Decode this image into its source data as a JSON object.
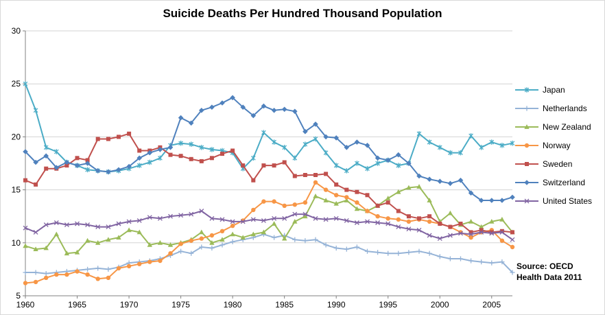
{
  "source_note": {
    "line1": "Source: OECD",
    "line2": "Health Data 2011"
  },
  "chart_data": {
    "type": "line",
    "title": "Suicide Deaths Per Hundred Thousand Population",
    "xlabel": "",
    "ylabel": "",
    "ylim": [
      5,
      30
    ],
    "y_ticks": [
      5,
      10,
      15,
      20,
      25,
      30
    ],
    "x_ticks": [
      1960,
      1965,
      1970,
      1975,
      1980,
      1985,
      1990,
      1995,
      2000,
      2005
    ],
    "grid": true,
    "legend_position": "right",
    "axis_color": "#808080",
    "gridline_color": "#D3D3D3",
    "x": [
      1960,
      1961,
      1962,
      1963,
      1964,
      1965,
      1966,
      1967,
      1968,
      1969,
      1970,
      1971,
      1972,
      1973,
      1974,
      1975,
      1976,
      1977,
      1978,
      1979,
      1980,
      1981,
      1982,
      1983,
      1984,
      1985,
      1986,
      1987,
      1988,
      1989,
      1990,
      1991,
      1992,
      1993,
      1994,
      1995,
      1996,
      1997,
      1998,
      1999,
      2000,
      2001,
      2002,
      2003,
      2004,
      2005,
      2006,
      2007
    ],
    "series": [
      {
        "name": "Japan",
        "color": "#4BACC6",
        "marker": "asterisk",
        "values": [
          25.0,
          22.5,
          19.0,
          18.6,
          17.6,
          17.3,
          16.9,
          16.8,
          16.7,
          16.8,
          17.0,
          17.3,
          17.6,
          18.0,
          19.2,
          19.4,
          19.3,
          19.0,
          18.8,
          18.7,
          18.5,
          17.0,
          18.0,
          20.4,
          19.5,
          19.0,
          18.0,
          19.3,
          19.8,
          18.5,
          17.3,
          16.8,
          17.5,
          17.0,
          17.5,
          17.8,
          17.3,
          17.5,
          20.3,
          19.5,
          19.0,
          18.5,
          18.5,
          20.1,
          19.0,
          19.5,
          19.2,
          19.4
        ]
      },
      {
        "name": "Netherlands",
        "color": "#95B3D7",
        "marker": "plus",
        "values": [
          7.2,
          7.2,
          7.1,
          7.2,
          7.3,
          7.4,
          7.5,
          7.6,
          7.5,
          7.7,
          8.1,
          8.2,
          8.3,
          8.5,
          8.8,
          9.2,
          9.0,
          9.6,
          9.5,
          9.8,
          10.1,
          10.3,
          10.5,
          10.8,
          10.5,
          10.7,
          10.3,
          10.2,
          10.3,
          9.8,
          9.5,
          9.4,
          9.6,
          9.2,
          9.1,
          9.0,
          9.0,
          9.1,
          9.2,
          9.0,
          8.7,
          8.5,
          8.5,
          8.3,
          8.2,
          8.1,
          8.2,
          7.2
        ]
      },
      {
        "name": "New Zealand",
        "color": "#9BBB59",
        "marker": "triangle",
        "values": [
          9.7,
          9.4,
          9.5,
          10.8,
          9.0,
          9.1,
          10.2,
          10.0,
          10.3,
          10.5,
          11.2,
          11.0,
          9.8,
          10.0,
          9.8,
          10.0,
          10.3,
          11.0,
          10.0,
          10.3,
          10.8,
          10.5,
          10.8,
          11.0,
          11.8,
          10.4,
          12.0,
          12.5,
          14.4,
          14.0,
          13.7,
          14.0,
          13.2,
          13.0,
          13.5,
          14.2,
          14.8,
          15.2,
          15.3,
          14.0,
          12.0,
          12.8,
          11.7,
          12.0,
          11.5,
          12.0,
          12.2,
          11.0
        ]
      },
      {
        "name": "Norway",
        "color": "#F79646",
        "marker": "circle",
        "values": [
          6.2,
          6.3,
          6.7,
          7.0,
          7.0,
          7.3,
          7.0,
          6.6,
          6.7,
          7.6,
          7.8,
          8.0,
          8.2,
          8.3,
          9.0,
          9.9,
          10.2,
          10.4,
          10.7,
          11.1,
          11.6,
          12.1,
          13.1,
          13.9,
          13.9,
          13.5,
          13.6,
          13.8,
          15.7,
          15.0,
          14.5,
          14.3,
          13.8,
          13.0,
          12.5,
          12.3,
          12.2,
          12.0,
          12.2,
          12.0,
          11.8,
          11.5,
          11.0,
          10.5,
          11.0,
          11.2,
          10.2,
          9.6
        ]
      },
      {
        "name": "Sweden",
        "color": "#C0504D",
        "marker": "square",
        "values": [
          15.9,
          15.5,
          17.0,
          17.0,
          17.3,
          18.0,
          17.8,
          19.8,
          19.8,
          20.0,
          20.3,
          18.7,
          18.7,
          19.0,
          18.3,
          18.2,
          17.9,
          17.7,
          18.0,
          18.4,
          18.7,
          17.3,
          15.9,
          17.3,
          17.3,
          17.6,
          16.3,
          16.4,
          16.4,
          16.5,
          15.5,
          15.0,
          14.8,
          14.5,
          13.5,
          13.8,
          13.0,
          12.5,
          12.3,
          12.5,
          11.8,
          11.5,
          11.8,
          11.0,
          11.2,
          11.0,
          11.1,
          11.0
        ]
      },
      {
        "name": "Switzerland",
        "color": "#4F81BD",
        "marker": "diamond",
        "values": [
          18.6,
          17.6,
          18.2,
          17.1,
          17.6,
          17.3,
          17.5,
          16.8,
          16.7,
          16.9,
          17.2,
          18.0,
          18.5,
          18.8,
          19.0,
          21.8,
          21.3,
          22.5,
          22.8,
          23.2,
          23.7,
          22.8,
          22.0,
          22.9,
          22.5,
          22.6,
          22.4,
          20.5,
          21.2,
          20.0,
          19.9,
          19.0,
          19.5,
          19.2,
          18.0,
          17.8,
          18.3,
          17.5,
          16.3,
          16.0,
          15.8,
          15.6,
          15.9,
          14.7,
          14.0,
          14.0,
          14.0,
          14.3
        ]
      },
      {
        "name": "United States",
        "color": "#8064A2",
        "marker": "x",
        "values": [
          11.4,
          11.0,
          11.7,
          11.9,
          11.7,
          11.8,
          11.7,
          11.5,
          11.5,
          11.8,
          12.0,
          12.1,
          12.4,
          12.3,
          12.5,
          12.6,
          12.7,
          13.0,
          12.3,
          12.2,
          12.0,
          12.0,
          12.2,
          12.1,
          12.3,
          12.3,
          12.7,
          12.7,
          12.3,
          12.2,
          12.3,
          12.1,
          11.9,
          12.0,
          11.9,
          11.8,
          11.5,
          11.3,
          11.2,
          10.7,
          10.4,
          10.7,
          10.9,
          10.8,
          11.0,
          10.9,
          11.0,
          10.3
        ]
      }
    ]
  }
}
